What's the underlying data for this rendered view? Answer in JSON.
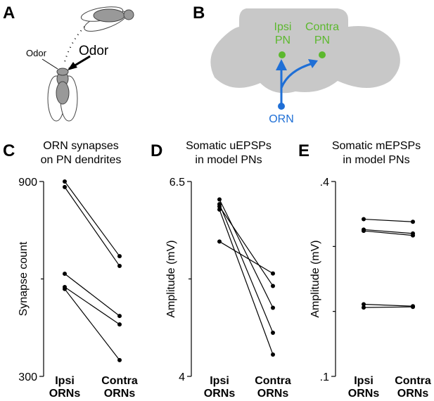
{
  "panel_labels": [
    "A",
    "B",
    "C",
    "D",
    "E"
  ],
  "diagram_a": {
    "labels": [
      "Odor",
      "Odor"
    ]
  },
  "diagram_b": {
    "labels": [
      "Ipsi",
      "PN",
      "Contra",
      "PN",
      "ORN"
    ]
  },
  "chart_data": [
    {
      "type": "line",
      "title": [
        "ORN synapses",
        "on PN dendrites"
      ],
      "ylabel": "Synapse count",
      "categories": [
        "Ipsi ORNs",
        "Contra ORNs"
      ],
      "color": "#000000",
      "ylim": [
        300,
        900
      ],
      "yticks": [
        300,
        900
      ],
      "minor_yticks": [
        600
      ],
      "series": [
        {
          "values": [
            900,
            670
          ]
        },
        {
          "values": [
            883,
            640
          ]
        },
        {
          "values": [
            616,
            486
          ]
        },
        {
          "values": [
            575,
            460
          ]
        },
        {
          "values": [
            569,
            350
          ]
        }
      ]
    },
    {
      "type": "line",
      "title": [
        "Somatic uEPSPs",
        "in model PNs"
      ],
      "ylabel": "Amplitude (mV)",
      "categories": [
        "Ipsi ORNs",
        "Contra ORNs"
      ],
      "color": "#000000",
      "ylim": [
        4,
        6.5
      ],
      "yticks": [
        4,
        6.5
      ],
      "minor_yticks": [
        5.25
      ],
      "series": [
        {
          "values": [
            6.27,
            4.88
          ]
        },
        {
          "values": [
            6.21,
            4.56
          ]
        },
        {
          "values": [
            6.18,
            5.16
          ]
        },
        {
          "values": [
            6.14,
            4.28
          ]
        },
        {
          "values": [
            5.73,
            5.32
          ]
        }
      ]
    },
    {
      "type": "line",
      "title": [
        "Somatic mEPSPs",
        "in model PNs"
      ],
      "ylabel": "Amplitude (mV)",
      "categories": [
        "Ipsi ORNs",
        "Contra ORNs"
      ],
      "color": "#000000",
      "ylim": [
        0.1,
        0.4
      ],
      "yticks": [
        {
          "value": 0.1,
          "label": ".1"
        },
        {
          "value": 0.4,
          "label": ".4"
        }
      ],
      "minor_yticks": [
        0.2,
        0.3
      ],
      "series": [
        {
          "values": [
            0.342,
            0.338
          ]
        },
        {
          "values": [
            0.326,
            0.32
          ]
        },
        {
          "values": [
            0.324,
            0.317
          ]
        },
        {
          "values": [
            0.211,
            0.208
          ]
        },
        {
          "values": [
            0.206,
            0.207
          ]
        }
      ]
    }
  ]
}
